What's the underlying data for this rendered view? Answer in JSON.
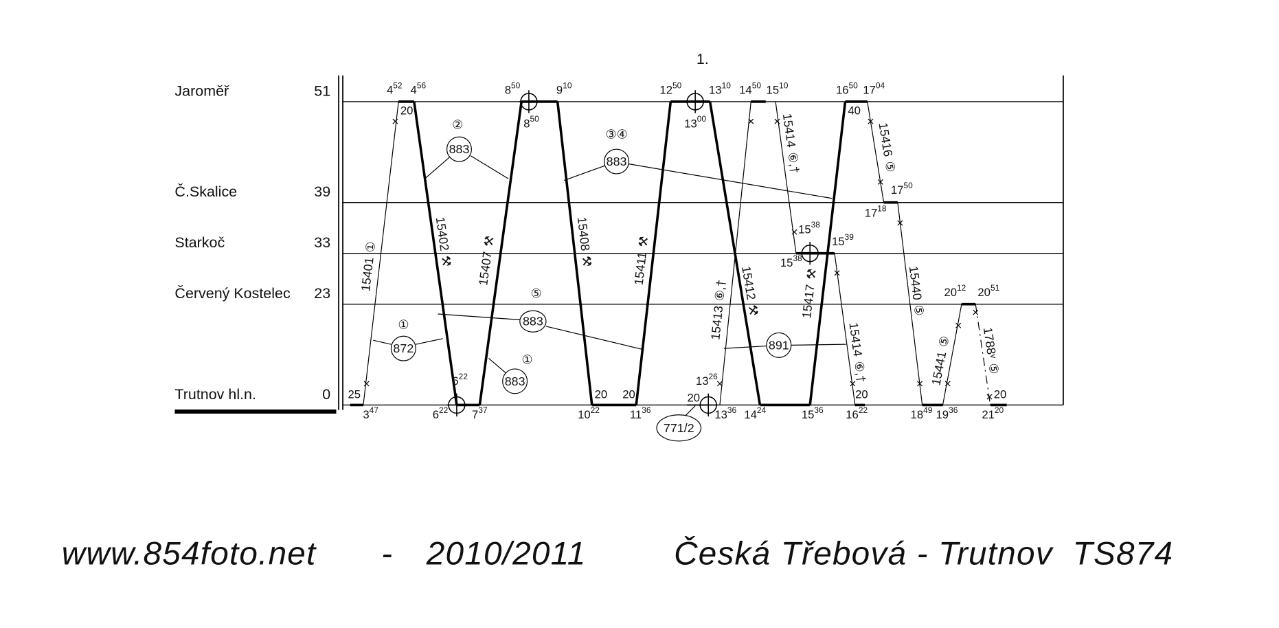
{
  "title": "1.",
  "stations": [
    {
      "name": "Jaroměř",
      "km": "51"
    },
    {
      "name": "Č.Skalice",
      "km": "39"
    },
    {
      "name": "Starkoč",
      "km": "33"
    },
    {
      "name": "Červený Kostelec",
      "km": "23"
    },
    {
      "name": "Trutnov hl.n.",
      "km": "0"
    }
  ],
  "trains": [
    {
      "number": "15401",
      "note": "①"
    },
    {
      "number": "15402",
      "note": "⚒"
    },
    {
      "number": "15407",
      "note": "⚒"
    },
    {
      "number": "15408",
      "note": "⚒"
    },
    {
      "number": "15411",
      "note": "⚒"
    },
    {
      "number": "15412",
      "note": "⚒"
    },
    {
      "number": "15413",
      "note": "⑥,†"
    },
    {
      "number": "15414",
      "note": "⑥,†"
    },
    {
      "number": "15417",
      "note": "⚒"
    },
    {
      "number": "15416",
      "note": "⑤"
    },
    {
      "number": "15440",
      "note": "⑤"
    },
    {
      "number": "15414",
      "note": "⑥,†"
    },
    {
      "number": "15441",
      "note": "⑤"
    },
    {
      "number": "1788ᵛ",
      "note": "⑤"
    }
  ],
  "times": [
    {
      "h": "4",
      "m": "52"
    },
    {
      "h": "4",
      "m": "56"
    },
    "20",
    {
      "h": "8",
      "m": "50"
    },
    {
      "h": "9",
      "m": "10"
    },
    {
      "h": "8",
      "m": "50"
    },
    {
      "h": "12",
      "m": "50"
    },
    {
      "h": "13",
      "m": "10"
    },
    {
      "h": "13",
      "m": "00"
    },
    {
      "h": "14",
      "m": "50"
    },
    {
      "h": "15",
      "m": "10"
    },
    {
      "h": "16",
      "m": "50"
    },
    {
      "h": "17",
      "m": "04"
    },
    "40",
    {
      "h": "17",
      "m": "50"
    },
    {
      "h": "17",
      "m": "18"
    },
    {
      "h": "15",
      "m": "38"
    },
    {
      "h": "15",
      "m": "38"
    },
    {
      "h": "15",
      "m": "39"
    },
    {
      "h": "20",
      "m": "12"
    },
    {
      "h": "20",
      "m": "51"
    },
    "25",
    {
      "h": "6",
      "m": "22"
    },
    "20",
    "20",
    {
      "h": "13",
      "m": "26"
    },
    "20",
    "20",
    "20",
    {
      "h": "3",
      "m": "47"
    },
    {
      "h": "6",
      "m": "22"
    },
    {
      "h": "7",
      "m": "37"
    },
    {
      "h": "10",
      "m": "22"
    },
    {
      "h": "11",
      "m": "36"
    },
    {
      "h": "13",
      "m": "36"
    },
    {
      "h": "14",
      "m": "24"
    },
    {
      "h": "15",
      "m": "36"
    },
    {
      "h": "16",
      "m": "22"
    },
    {
      "h": "18",
      "m": "49"
    },
    {
      "h": "19",
      "m": "36"
    },
    {
      "h": "21",
      "m": "20"
    }
  ],
  "circulations": [
    {
      "number": "883",
      "days": "②"
    },
    {
      "number": "883",
      "days": "③④"
    },
    {
      "number": "883",
      "days": "⑤"
    },
    {
      "number": "872",
      "days": "①"
    },
    {
      "number": "883",
      "days": "①"
    },
    {
      "number": "891"
    },
    {
      "number": "771/2"
    }
  ],
  "footer": {
    "site": "www.854foto.net",
    "separator": "-",
    "season": "2010/2011",
    "route": "Česká Třebová - Trutnov  TS874"
  }
}
